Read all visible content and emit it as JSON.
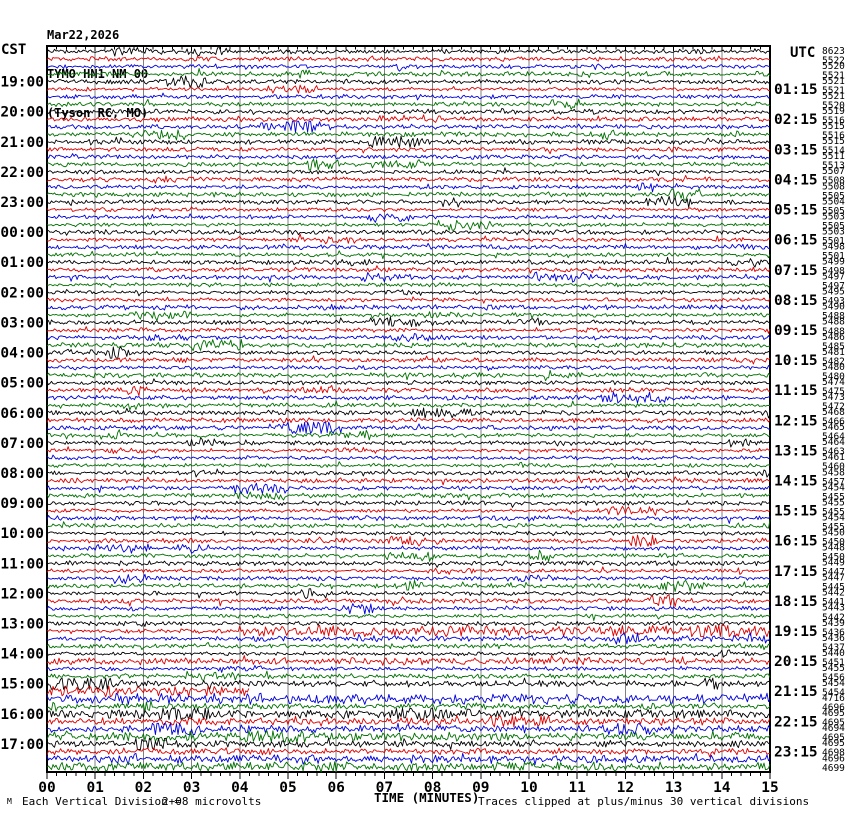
{
  "header": {
    "date": "Mar22,2026",
    "station": "TYMO HN1 NM 00",
    "location": "(Tyson RC, MO)"
  },
  "axis": {
    "left_tz": "CST",
    "right_tz": "UTC",
    "x_title": "TIME (MINUTES)",
    "x_tick_labels": [
      "00",
      "01",
      "02",
      "03",
      "04",
      "05",
      "06",
      "07",
      "08",
      "09",
      "10",
      "11",
      "12",
      "13",
      "14",
      "15"
    ]
  },
  "footer": {
    "corner_mark": "M",
    "scale_label": "Each Vertical Division =",
    "scale_value": "2+08 microvolts",
    "clip_note": "Traces clipped at plus/minus 30 vertical divisions"
  },
  "chart_data": {
    "type": "line",
    "subtype": "helicorder_seismogram",
    "title": "TYMO HN1 NM 00 (Tyson RC, MO) Mar22,2026",
    "xlabel": "TIME (MINUTES)",
    "x_range_minutes": [
      0,
      15
    ],
    "minutes_per_line": 15,
    "traces_per_hour": 4,
    "trace_count": 96,
    "first_labeled_trace_index": 4,
    "color_cycle": [
      "#000000",
      "#dd0000",
      "#0000dd",
      "#007000"
    ],
    "grid_color": "#808080",
    "background": "#ffffff",
    "left_axis_times_cst": [
      "19:00",
      "20:00",
      "21:00",
      "22:00",
      "23:00",
      "00:00",
      "01:00",
      "02:00",
      "03:00",
      "04:00",
      "05:00",
      "06:00",
      "07:00",
      "08:00",
      "09:00",
      "10:00",
      "11:00",
      "12:00",
      "13:00",
      "14:00",
      "15:00",
      "16:00",
      "17:00"
    ],
    "right_axis_times_utc": [
      "01:15",
      "02:15",
      "03:15",
      "04:15",
      "05:15",
      "06:15",
      "07:15",
      "08:15",
      "09:15",
      "10:15",
      "11:15",
      "12:15",
      "13:15",
      "14:15",
      "15:15",
      "16:15",
      "17:15",
      "18:15",
      "19:15",
      "20:15",
      "21:15",
      "22:15",
      "23:15"
    ],
    "right_column_values": [
      8623,
      5522,
      5520,
      5521,
      5521,
      5521,
      5521,
      5520,
      5519,
      5516,
      5515,
      5516,
      5515,
      5514,
      5511,
      5513,
      5507,
      5508,
      5508,
      5505,
      5504,
      5505,
      5503,
      5505,
      5503,
      5501,
      5498,
      5501,
      5499,
      5498,
      5497,
      5497,
      5495,
      5493,
      5490,
      5488,
      5488,
      5488,
      5486,
      5485,
      5481,
      5482,
      5480,
      5480,
      5474,
      5475,
      5473,
      5472,
      5468,
      5466,
      5465,
      5464,
      5464,
      5463,
      5461,
      5460,
      5458,
      5457,
      5454,
      5455,
      5455,
      5455,
      5454,
      5455,
      5450,
      5450,
      5448,
      5450,
      5449,
      5447,
      5447,
      5445,
      5442,
      5441,
      5443,
      5442,
      5439,
      5436,
      5436,
      5437,
      5440,
      5451,
      5455,
      5456,
      5454,
      5454,
      4716,
      4696,
      4695,
      4695,
      4694,
      4695,
      4695,
      4698,
      4696,
      4699
    ],
    "scale_note": "Each Vertical Division = 2+08 microvolts",
    "clip_note": "Traces clipped at plus/minus 30 vertical divisions",
    "events": [
      {
        "trace": 77,
        "cst": "13:15",
        "from_min": 4.0,
        "to_min": 15,
        "amp_scale": 2.4,
        "note": "sustained elevated amplitude"
      },
      {
        "trace": 78,
        "cst": "13:30",
        "from_min": 4.0,
        "to_min": 15,
        "amp_scale": 1.4,
        "note": "slightly elevated"
      },
      {
        "trace": 81,
        "cst": "14:15",
        "from_min": 0,
        "to_min": 15,
        "amp_scale": 1.5,
        "note": "elevated noise"
      },
      {
        "trace": 84,
        "cst": "15:00",
        "from_min": 0,
        "to_min": 15,
        "amp_scale": 1.4,
        "note": "elevated noise"
      },
      {
        "trace": 85,
        "cst": "15:15",
        "from_min": 0,
        "to_min": 4.2,
        "amp_scale": 2.2,
        "truncate_at_min": 4.2,
        "note": "trace ends near minute 4 (data gap)"
      },
      {
        "trace": 86,
        "cst": "15:30",
        "from_min": 0,
        "to_min": 15,
        "amp_scale": 2.2,
        "note": "elevated noise with bursts"
      },
      {
        "trace": 87,
        "cst": "15:45",
        "from_min": 0,
        "to_min": 15,
        "amp_scale": 1.6,
        "spike_min": 2.1,
        "note": "spike near minute 2"
      },
      {
        "trace": 88,
        "cst": "16:00",
        "from_min": 0,
        "to_min": 15,
        "amp_scale": 1.9,
        "note": "elevated noise"
      },
      {
        "trace": 89,
        "cst": "16:15",
        "from_min": 0,
        "to_min": 15,
        "amp_scale": 1.8,
        "note": "elevated noise"
      },
      {
        "trace": 90,
        "cst": "16:30",
        "from_min": 0,
        "to_min": 15,
        "amp_scale": 1.8,
        "note": "elevated noise"
      },
      {
        "trace": 91,
        "cst": "16:45",
        "from_min": 0,
        "to_min": 15,
        "amp_scale": 2.0,
        "note": "elevated noise"
      },
      {
        "trace": 92,
        "cst": "17:00",
        "from_min": 0,
        "to_min": 15,
        "amp_scale": 1.8,
        "note": "elevated noise"
      },
      {
        "trace": 93,
        "cst": "17:15",
        "from_min": 0,
        "to_min": 15,
        "amp_scale": 1.8,
        "note": "elevated noise"
      },
      {
        "trace": 94,
        "cst": "17:30",
        "from_min": 0,
        "to_min": 15,
        "amp_scale": 1.9,
        "note": "elevated noise"
      },
      {
        "trace": 95,
        "cst": "17:45",
        "from_min": 0,
        "to_min": 15,
        "amp_scale": 2.4,
        "note": "elevated noise"
      }
    ]
  }
}
